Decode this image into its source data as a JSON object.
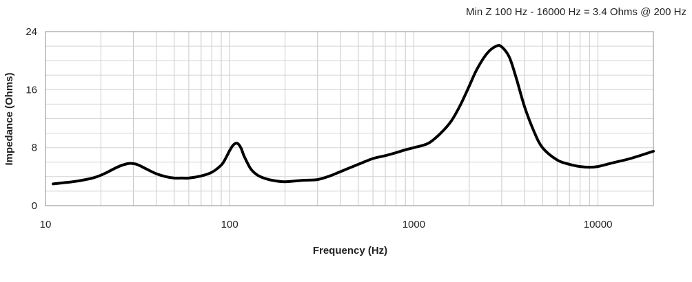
{
  "chart_data": {
    "type": "line",
    "title": "",
    "annotation": "Min Z  100 Hz - 16000 Hz = 3.4 Ohms @ 200 Hz",
    "xlabel": "Frequency (Hz)",
    "ylabel": "Impedance (Ohms)",
    "x_scale": "log",
    "xlim": [
      10,
      20000
    ],
    "ylim": [
      0,
      24
    ],
    "x_ticks": [
      10,
      100,
      1000,
      10000
    ],
    "x_tick_labels": [
      "10",
      "100",
      "1000",
      "10000"
    ],
    "y_ticks": [
      0,
      8,
      16,
      24
    ],
    "y_tick_labels": [
      "0",
      "8",
      "16",
      "24"
    ],
    "grid": true,
    "legend": "none",
    "line_color": "#000000",
    "series": [
      {
        "x": [
          11,
          13,
          15,
          18,
          20,
          22,
          25,
          28,
          30,
          32,
          35,
          40,
          45,
          50,
          55,
          60,
          70,
          80,
          90,
          95,
          100,
          105,
          110,
          115,
          120,
          130,
          140,
          150,
          170,
          200,
          250,
          300,
          350,
          400,
          500,
          600,
          700,
          800,
          900,
          1000,
          1200,
          1400,
          1600,
          1800,
          2000,
          2200,
          2500,
          2800,
          3000,
          3300,
          3600,
          4000,
          4500,
          5000,
          6000,
          7000,
          8000,
          9000,
          10000,
          12000,
          15000,
          20000
        ],
        "y": [
          3.0,
          3.2,
          3.4,
          3.8,
          4.2,
          4.7,
          5.4,
          5.8,
          5.8,
          5.6,
          5.1,
          4.4,
          4.0,
          3.8,
          3.8,
          3.8,
          4.1,
          4.6,
          5.6,
          6.5,
          7.6,
          8.4,
          8.6,
          8.0,
          6.8,
          5.1,
          4.3,
          3.9,
          3.5,
          3.3,
          3.5,
          3.6,
          4.1,
          4.7,
          5.7,
          6.5,
          6.9,
          7.3,
          7.7,
          8.0,
          8.6,
          10.0,
          11.7,
          14.0,
          16.5,
          18.8,
          21.0,
          22.0,
          21.9,
          20.5,
          17.6,
          13.6,
          10.2,
          8.0,
          6.3,
          5.7,
          5.4,
          5.3,
          5.4,
          5.9,
          6.5,
          7.5
        ]
      }
    ]
  }
}
